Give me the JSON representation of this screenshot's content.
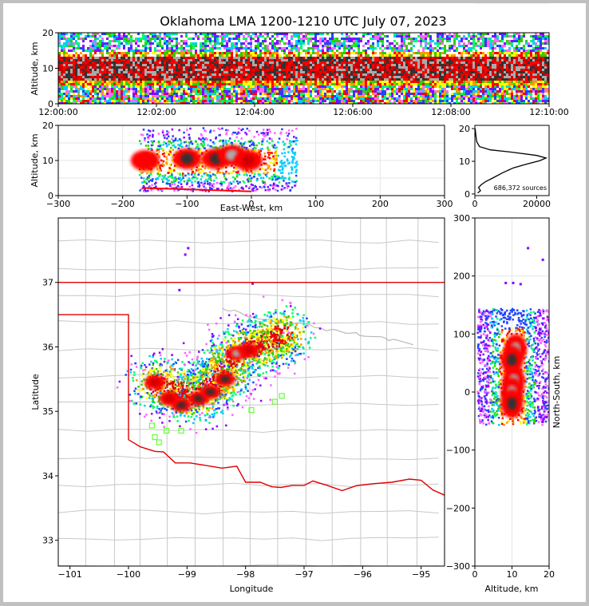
{
  "title": "Oklahoma LMA 1200-1210 UTC July 07, 2023",
  "colors": {
    "background": "#ffffff",
    "border": "#c0c0c0",
    "state_border": "#e00000",
    "county_lines": "#c8c8c8",
    "station_marker": "#66ff33",
    "density_colormap": [
      "#ffffff",
      "#ff66ff",
      "#8800ff",
      "#2244ff",
      "#00ccff",
      "#00ff66",
      "#33cc00",
      "#ffff00",
      "#ff9900",
      "#ff0000",
      "#cc0000",
      "#333333",
      "#aaaaaa",
      "#ffffff"
    ]
  },
  "chart_data": [
    {
      "id": "time_height",
      "type": "heatmap",
      "ylabel": "Altitude, km",
      "xlabel": "",
      "x_ticks": [
        "12:00:00",
        "12:02:00",
        "12:04:00",
        "12:06:00",
        "12:08:00",
        "12:10:00"
      ],
      "y_ticks": [
        "0",
        "10",
        "20"
      ],
      "xlim": [
        "12:00:00",
        "12:10:00"
      ],
      "ylim": [
        0,
        20
      ],
      "core_altitude_km": [
        7,
        13
      ]
    },
    {
      "id": "east_west_altitude",
      "type": "heatmap",
      "xlabel": "East-West, km",
      "ylabel": "Altitude, km",
      "x_ticks": [
        "−300",
        "−200",
        "−100",
        "0",
        "100",
        "200",
        "300"
      ],
      "y_ticks": [
        "0",
        "10",
        "20"
      ],
      "xlim": [
        -300,
        300
      ],
      "ylim": [
        0,
        20
      ],
      "cells": [
        {
          "x": -165,
          "z": 10,
          "level": 9
        },
        {
          "x": -100,
          "z": 10.5,
          "level": 11
        },
        {
          "x": -55,
          "z": 10.5,
          "level": 11
        },
        {
          "x": -30,
          "z": 11.5,
          "level": 12
        },
        {
          "x": -5,
          "z": 10,
          "level": 10
        }
      ],
      "extent_x": [
        -175,
        70
      ]
    },
    {
      "id": "altitude_histogram",
      "type": "line",
      "xlabel": "",
      "ylabel": "",
      "x_ticks": [
        "0",
        "20000"
      ],
      "y_ticks": [
        "0",
        "10",
        "20"
      ],
      "xlim": [
        0,
        24000
      ],
      "ylim": [
        -0.5,
        21
      ],
      "annotation": "686,372 sources",
      "series": [
        {
          "points": [
            [
              900,
              0.3
            ],
            [
              1800,
              1
            ],
            [
              1200,
              2
            ],
            [
              2000,
              2.8
            ],
            [
              3500,
              3.8
            ],
            [
              6000,
              5
            ],
            [
              9000,
              6.5
            ],
            [
              12500,
              8
            ],
            [
              17000,
              9.2
            ],
            [
              21000,
              10.2
            ],
            [
              23000,
              11
            ],
            [
              20000,
              11.8
            ],
            [
              12000,
              12.8
            ],
            [
              5000,
              13.5
            ],
            [
              1500,
              14.5
            ],
            [
              600,
              16
            ],
            [
              300,
              18
            ],
            [
              100,
              20
            ]
          ]
        }
      ]
    },
    {
      "id": "plan_view",
      "type": "scatter",
      "xlabel": "Longitude",
      "ylabel": "Latitude",
      "x_ticks": [
        "−101",
        "−100",
        "−99",
        "−98",
        "−97",
        "−96",
        "−95"
      ],
      "y_ticks": [
        "33",
        "34",
        "35",
        "36",
        "37"
      ],
      "xlim": [
        -101.2,
        -94.6
      ],
      "ylim": [
        32.6,
        38.0
      ],
      "cells": [
        {
          "lon": -98.8,
          "lat": 35.2,
          "level": 11
        },
        {
          "lon": -98.6,
          "lat": 35.3,
          "level": 11
        },
        {
          "lon": -98.35,
          "lat": 35.5,
          "level": 11
        },
        {
          "lon": -98.15,
          "lat": 35.9,
          "level": 12
        },
        {
          "lon": -97.95,
          "lat": 35.95,
          "level": 10
        },
        {
          "lon": -99.1,
          "lat": 35.1,
          "level": 11
        },
        {
          "lon": -99.55,
          "lat": 35.45,
          "level": 10
        },
        {
          "lon": -99.3,
          "lat": 35.2,
          "level": 10
        }
      ],
      "stations": [
        {
          "lon": -99.6,
          "lat": 34.78
        },
        {
          "lon": -99.55,
          "lat": 34.6
        },
        {
          "lon": -99.48,
          "lat": 34.52
        },
        {
          "lon": -99.35,
          "lat": 34.7
        },
        {
          "lon": -99.1,
          "lat": 34.7
        },
        {
          "lon": -97.9,
          "lat": 35.02
        },
        {
          "lon": -97.5,
          "lat": 35.15
        },
        {
          "lon": -97.38,
          "lat": 35.24
        }
      ],
      "state_border": [
        [
          [
            -103,
            37.0
          ],
          [
            -94.6,
            37.0
          ]
        ],
        [
          [
            -103,
            36.5
          ],
          [
            -100.0,
            36.5
          ],
          [
            -100.0,
            34.56
          ]
        ],
        [
          [
            -100.0,
            34.56
          ],
          [
            -99.8,
            34.45
          ],
          [
            -99.55,
            34.38
          ],
          [
            -99.4,
            34.37
          ],
          [
            -99.2,
            34.2
          ],
          [
            -98.95,
            34.2
          ],
          [
            -98.6,
            34.15
          ],
          [
            -98.4,
            34.12
          ],
          [
            -98.15,
            34.15
          ],
          [
            -98.0,
            33.9
          ],
          [
            -97.75,
            33.9
          ],
          [
            -97.55,
            33.83
          ],
          [
            -97.4,
            33.82
          ],
          [
            -97.2,
            33.85
          ],
          [
            -97.0,
            33.85
          ],
          [
            -96.85,
            33.92
          ],
          [
            -96.6,
            33.85
          ],
          [
            -96.35,
            33.77
          ],
          [
            -96.1,
            33.85
          ],
          [
            -95.8,
            33.88
          ],
          [
            -95.5,
            33.9
          ],
          [
            -95.2,
            33.95
          ],
          [
            -95.0,
            33.93
          ],
          [
            -94.8,
            33.78
          ],
          [
            -94.6,
            33.7
          ]
        ]
      ]
    },
    {
      "id": "north_south_altitude",
      "type": "heatmap",
      "xlabel": "Altitude, km",
      "ylabel": "North-South, km",
      "x_ticks": [
        "0",
        "10",
        "20"
      ],
      "y_ticks": [
        "−300",
        "−200",
        "−100",
        "0",
        "100",
        "200",
        "300"
      ],
      "xlim": [
        0,
        20
      ],
      "ylim": [
        -300,
        300
      ],
      "cells": [
        {
          "z": 11,
          "y": 75,
          "level": 12
        },
        {
          "z": 10,
          "y": 55,
          "level": 11
        },
        {
          "z": 10.5,
          "y": 20,
          "level": 12
        },
        {
          "z": 10,
          "y": 0,
          "level": 12
        },
        {
          "z": 10,
          "y": -20,
          "level": 11
        }
      ],
      "extent_y": [
        -55,
        145
      ]
    }
  ]
}
